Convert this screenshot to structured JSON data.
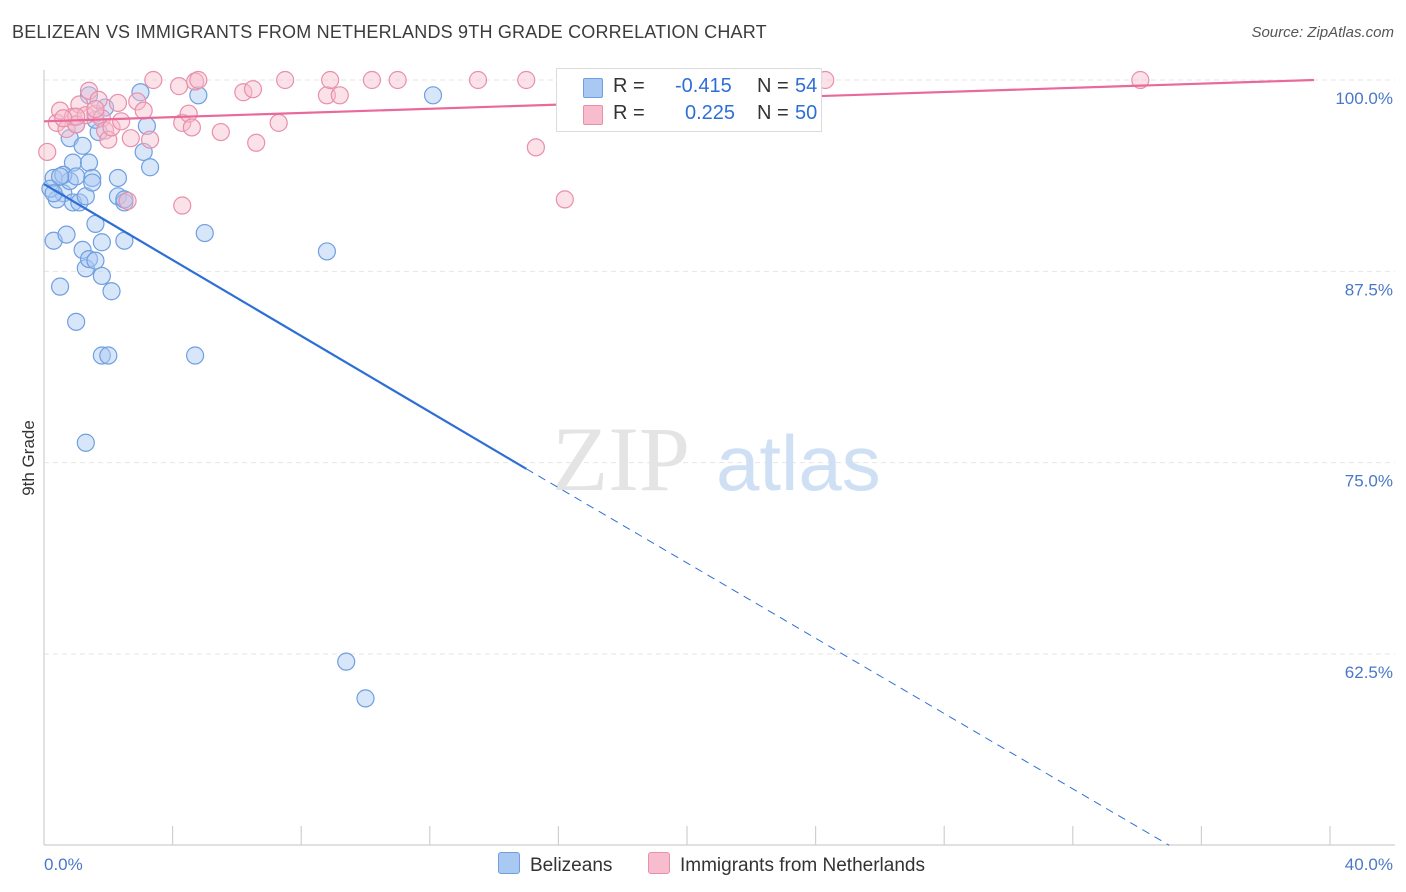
{
  "title": "BELIZEAN VS IMMIGRANTS FROM NETHERLANDS 9TH GRADE CORRELATION CHART",
  "source": "Source: ZipAtlas.com",
  "watermark": {
    "zip": "ZIP",
    "atlas": "atlas"
  },
  "legend": {
    "r_label": "R =",
    "n_label": "N =",
    "series": [
      {
        "name": "Belizeans",
        "r": "-0.415",
        "n": "54",
        "color": "#a9c8f2",
        "edge": "#6f9fe0"
      },
      {
        "name": "Immigrants from Netherlands",
        "r": "0.225",
        "n": "50",
        "color": "#f7bccd",
        "edge": "#e88fac"
      }
    ]
  },
  "chart_data": {
    "type": "scatter",
    "title": "BELIZEAN VS IMMIGRANTS FROM NETHERLANDS 9TH GRADE CORRELATION CHART",
    "xlabel": "",
    "ylabel": "9th Grade",
    "xlim": [
      0,
      40
    ],
    "ylim": [
      50,
      101.5
    ],
    "x_tick_labels": [
      "0.0%",
      "40.0%"
    ],
    "y_ticks": [
      62.5,
      75.0,
      87.5,
      100.0
    ],
    "y_tick_labels": [
      "62.5%",
      "75.0%",
      "87.5%",
      "100.0%"
    ],
    "series": [
      {
        "name": "Belizeans",
        "color": "#6f9fe0",
        "line_color": "#2e6fd6",
        "trend": {
          "solid": [
            [
              0,
              93.2
            ],
            [
              15,
              74.6
            ]
          ],
          "dashed": [
            [
              15,
              74.6
            ],
            [
              35,
              50
            ]
          ]
        },
        "points": [
          [
            0.3,
            93.6
          ],
          [
            0.6,
            92.6
          ],
          [
            0.9,
            92.0
          ],
          [
            0.4,
            92.2
          ],
          [
            0.2,
            92.9
          ],
          [
            0.3,
            89.5
          ],
          [
            0.5,
            86.5
          ],
          [
            0.7,
            89.9
          ],
          [
            0.9,
            94.6
          ],
          [
            0.8,
            93.4
          ],
          [
            0.6,
            93.8
          ],
          [
            0.8,
            96.2
          ],
          [
            1.2,
            95.7
          ],
          [
            1.4,
            94.6
          ],
          [
            1.1,
            92.0
          ],
          [
            1.3,
            92.4
          ],
          [
            1.5,
            93.6
          ],
          [
            1.0,
            93.7
          ],
          [
            1.2,
            88.9
          ],
          [
            1.3,
            87.7
          ],
          [
            1.4,
            88.3
          ],
          [
            1.6,
            88.2
          ],
          [
            1.6,
            90.6
          ],
          [
            1.8,
            89.4
          ],
          [
            1.8,
            87.2
          ],
          [
            2.1,
            86.2
          ],
          [
            1.8,
            82.0
          ],
          [
            2.0,
            82.0
          ],
          [
            1.0,
            84.2
          ],
          [
            1.3,
            76.3
          ],
          [
            1.7,
            96.6
          ],
          [
            1.4,
            99.0
          ],
          [
            1.6,
            97.4
          ],
          [
            1.9,
            98.2
          ],
          [
            2.3,
            93.6
          ],
          [
            2.3,
            92.4
          ],
          [
            2.5,
            89.5
          ],
          [
            2.5,
            92.0
          ],
          [
            3.0,
            99.2
          ],
          [
            3.1,
            95.3
          ],
          [
            3.2,
            97.0
          ],
          [
            3.3,
            94.3
          ],
          [
            4.8,
            99.0
          ],
          [
            5.0,
            90.0
          ],
          [
            4.7,
            82.0
          ],
          [
            8.8,
            88.8
          ],
          [
            12.1,
            99.0
          ],
          [
            9.4,
            62.0
          ],
          [
            10.0,
            59.6
          ],
          [
            0.3,
            92.6
          ],
          [
            0.5,
            93.7
          ],
          [
            1.0,
            97.1
          ],
          [
            1.5,
            93.3
          ],
          [
            2.5,
            92.2
          ]
        ]
      },
      {
        "name": "Immigrants from Netherlands",
        "color": "#e88fac",
        "line_color": "#e8699a",
        "trend": {
          "solid": [
            [
              0,
              97.3
            ],
            [
              39.5,
              100.0
            ]
          ],
          "dashed": []
        },
        "points": [
          [
            0.1,
            95.3
          ],
          [
            0.4,
            97.2
          ],
          [
            0.5,
            98.0
          ],
          [
            0.7,
            96.8
          ],
          [
            0.9,
            97.6
          ],
          [
            1.0,
            97.1
          ],
          [
            1.1,
            98.4
          ],
          [
            1.3,
            97.7
          ],
          [
            1.4,
            99.3
          ],
          [
            1.6,
            97.8
          ],
          [
            1.7,
            98.7
          ],
          [
            1.8,
            97.5
          ],
          [
            1.9,
            96.7
          ],
          [
            2.0,
            96.1
          ],
          [
            2.1,
            96.9
          ],
          [
            2.3,
            98.5
          ],
          [
            2.4,
            97.3
          ],
          [
            2.7,
            96.2
          ],
          [
            2.9,
            98.6
          ],
          [
            3.1,
            98.0
          ],
          [
            3.3,
            96.1
          ],
          [
            3.4,
            100.0
          ],
          [
            4.2,
            99.6
          ],
          [
            4.3,
            97.2
          ],
          [
            4.5,
            97.8
          ],
          [
            4.6,
            96.9
          ],
          [
            4.7,
            99.9
          ],
          [
            4.8,
            100.0
          ],
          [
            5.5,
            96.6
          ],
          [
            6.2,
            99.2
          ],
          [
            6.5,
            99.4
          ],
          [
            6.6,
            95.9
          ],
          [
            7.3,
            97.2
          ],
          [
            7.5,
            100.0
          ],
          [
            8.8,
            99.0
          ],
          [
            8.9,
            100.0
          ],
          [
            9.2,
            99.0
          ],
          [
            10.2,
            100.0
          ],
          [
            11.0,
            100.0
          ],
          [
            13.5,
            100.0
          ],
          [
            15.0,
            100.0
          ],
          [
            15.3,
            95.6
          ],
          [
            16.2,
            92.2
          ],
          [
            24.3,
            100.0
          ],
          [
            34.1,
            100.0
          ],
          [
            4.3,
            91.8
          ],
          [
            2.6,
            92.1
          ],
          [
            1.0,
            97.6
          ],
          [
            1.6,
            98.1
          ],
          [
            0.6,
            97.5
          ]
        ]
      }
    ]
  }
}
